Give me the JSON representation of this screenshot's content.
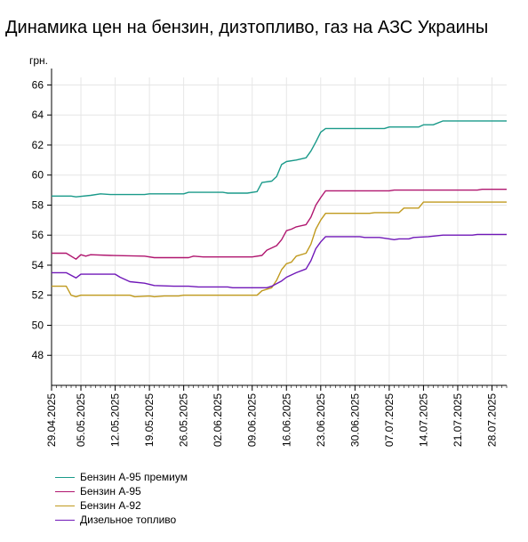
{
  "chart_data": {
    "type": "line",
    "title": "Динамика цен на бензин, дизтопливо, газ на АЗС Украины",
    "ylabel": "грн.",
    "ylim": [
      46,
      66.5
    ],
    "yticks": [
      "48",
      "50",
      "52",
      "54",
      "56",
      "58",
      "60",
      "62",
      "64",
      "66"
    ],
    "xlim": [
      "2025-04-29",
      "2025-07-31"
    ],
    "xticks": [
      "29.04.2025",
      "05.05.2025",
      "12.05.2025",
      "19.05.2025",
      "26.05.2025",
      "02.06.2025",
      "09.06.2025",
      "16.06.2025",
      "23.06.2025",
      "30.06.2025",
      "07.07.2025",
      "14.07.2025",
      "21.07.2025",
      "28.07.2025"
    ],
    "grid": true,
    "legend_position": "bottom-left",
    "series": [
      {
        "name": "Бензин А-95 премиум",
        "color": "#1a9a8a",
        "points": [
          [
            "2025-04-29",
            58.6
          ],
          [
            "2025-05-03",
            58.6
          ],
          [
            "2025-05-04",
            58.55
          ],
          [
            "2025-05-07",
            58.65
          ],
          [
            "2025-05-09",
            58.75
          ],
          [
            "2025-05-11",
            58.7
          ],
          [
            "2025-05-18",
            58.7
          ],
          [
            "2025-05-19",
            58.75
          ],
          [
            "2025-05-26",
            58.75
          ],
          [
            "2025-05-27",
            58.85
          ],
          [
            "2025-06-03",
            58.85
          ],
          [
            "2025-06-04",
            58.8
          ],
          [
            "2025-06-08",
            58.8
          ],
          [
            "2025-06-10",
            58.9
          ],
          [
            "2025-06-11",
            59.5
          ],
          [
            "2025-06-13",
            59.6
          ],
          [
            "2025-06-14",
            59.9
          ],
          [
            "2025-06-15",
            60.7
          ],
          [
            "2025-06-16",
            60.9
          ],
          [
            "2025-06-18",
            61.0
          ],
          [
            "2025-06-20",
            61.15
          ],
          [
            "2025-06-21",
            61.6
          ],
          [
            "2025-06-22",
            62.2
          ],
          [
            "2025-06-23",
            62.85
          ],
          [
            "2025-06-24",
            63.1
          ],
          [
            "2025-06-30",
            63.1
          ],
          [
            "2025-07-06",
            63.1
          ],
          [
            "2025-07-07",
            63.2
          ],
          [
            "2025-07-13",
            63.2
          ],
          [
            "2025-07-14",
            63.35
          ],
          [
            "2025-07-16",
            63.35
          ],
          [
            "2025-07-18",
            63.6
          ],
          [
            "2025-07-31",
            63.6
          ]
        ]
      },
      {
        "name": "Бензин А-95",
        "color": "#b0166f",
        "points": [
          [
            "2025-04-29",
            54.8
          ],
          [
            "2025-05-02",
            54.8
          ],
          [
            "2025-05-04",
            54.4
          ],
          [
            "2025-05-05",
            54.7
          ],
          [
            "2025-05-06",
            54.6
          ],
          [
            "2025-05-07",
            54.7
          ],
          [
            "2025-05-11",
            54.65
          ],
          [
            "2025-05-18",
            54.6
          ],
          [
            "2025-05-20",
            54.5
          ],
          [
            "2025-05-27",
            54.5
          ],
          [
            "2025-05-28",
            54.6
          ],
          [
            "2025-05-30",
            54.55
          ],
          [
            "2025-06-09",
            54.55
          ],
          [
            "2025-06-11",
            54.65
          ],
          [
            "2025-06-12",
            55.0
          ],
          [
            "2025-06-14",
            55.3
          ],
          [
            "2025-06-15",
            55.7
          ],
          [
            "2025-06-16",
            56.3
          ],
          [
            "2025-06-17",
            56.4
          ],
          [
            "2025-06-18",
            56.55
          ],
          [
            "2025-06-20",
            56.7
          ],
          [
            "2025-06-21",
            57.2
          ],
          [
            "2025-06-22",
            58.0
          ],
          [
            "2025-06-23",
            58.5
          ],
          [
            "2025-06-24",
            58.95
          ],
          [
            "2025-07-07",
            58.95
          ],
          [
            "2025-07-08",
            59.0
          ],
          [
            "2025-07-25",
            59.0
          ],
          [
            "2025-07-26",
            59.05
          ],
          [
            "2025-07-31",
            59.05
          ]
        ]
      },
      {
        "name": "Бензин А-92",
        "color": "#c09a1e",
        "points": [
          [
            "2025-04-29",
            52.6
          ],
          [
            "2025-05-02",
            52.6
          ],
          [
            "2025-05-03",
            52.0
          ],
          [
            "2025-05-04",
            51.9
          ],
          [
            "2025-05-05",
            52.0
          ],
          [
            "2025-05-15",
            52.0
          ],
          [
            "2025-05-16",
            51.9
          ],
          [
            "2025-05-19",
            51.95
          ],
          [
            "2025-05-20",
            51.9
          ],
          [
            "2025-05-22",
            51.95
          ],
          [
            "2025-05-25",
            51.95
          ],
          [
            "2025-05-26",
            52.0
          ],
          [
            "2025-06-10",
            52.0
          ],
          [
            "2025-06-11",
            52.3
          ],
          [
            "2025-06-13",
            52.5
          ],
          [
            "2025-06-14",
            53.0
          ],
          [
            "2025-06-15",
            53.7
          ],
          [
            "2025-06-16",
            54.1
          ],
          [
            "2025-06-17",
            54.2
          ],
          [
            "2025-06-18",
            54.6
          ],
          [
            "2025-06-20",
            54.8
          ],
          [
            "2025-06-21",
            55.4
          ],
          [
            "2025-06-22",
            56.4
          ],
          [
            "2025-06-23",
            57.0
          ],
          [
            "2025-06-24",
            57.45
          ],
          [
            "2025-07-03",
            57.45
          ],
          [
            "2025-07-04",
            57.5
          ],
          [
            "2025-07-09",
            57.5
          ],
          [
            "2025-07-10",
            57.8
          ],
          [
            "2025-07-13",
            57.8
          ],
          [
            "2025-07-14",
            58.2
          ],
          [
            "2025-07-31",
            58.2
          ]
        ]
      },
      {
        "name": "Дизельное топливо",
        "color": "#7018b8",
        "points": [
          [
            "2025-04-29",
            53.5
          ],
          [
            "2025-05-02",
            53.5
          ],
          [
            "2025-05-04",
            53.15
          ],
          [
            "2025-05-05",
            53.4
          ],
          [
            "2025-05-12",
            53.4
          ],
          [
            "2025-05-13",
            53.2
          ],
          [
            "2025-05-15",
            52.9
          ],
          [
            "2025-05-18",
            52.8
          ],
          [
            "2025-05-20",
            52.65
          ],
          [
            "2025-05-24",
            52.6
          ],
          [
            "2025-05-27",
            52.6
          ],
          [
            "2025-05-29",
            52.55
          ],
          [
            "2025-06-04",
            52.55
          ],
          [
            "2025-06-05",
            52.5
          ],
          [
            "2025-06-12",
            52.5
          ],
          [
            "2025-06-13",
            52.6
          ],
          [
            "2025-06-15",
            52.95
          ],
          [
            "2025-06-16",
            53.2
          ],
          [
            "2025-06-18",
            53.5
          ],
          [
            "2025-06-20",
            53.75
          ],
          [
            "2025-06-21",
            54.3
          ],
          [
            "2025-06-22",
            55.1
          ],
          [
            "2025-06-23",
            55.55
          ],
          [
            "2025-06-24",
            55.9
          ],
          [
            "2025-07-01",
            55.9
          ],
          [
            "2025-07-02",
            55.85
          ],
          [
            "2025-07-05",
            55.85
          ],
          [
            "2025-07-07",
            55.75
          ],
          [
            "2025-07-08",
            55.7
          ],
          [
            "2025-07-09",
            55.75
          ],
          [
            "2025-07-11",
            55.75
          ],
          [
            "2025-07-12",
            55.85
          ],
          [
            "2025-07-15",
            55.9
          ],
          [
            "2025-07-18",
            56.0
          ],
          [
            "2025-07-24",
            56.0
          ],
          [
            "2025-07-25",
            56.05
          ],
          [
            "2025-07-31",
            56.05
          ]
        ]
      }
    ]
  }
}
